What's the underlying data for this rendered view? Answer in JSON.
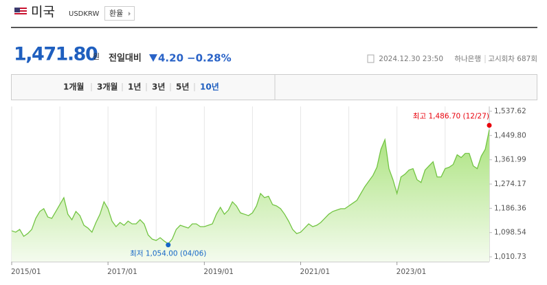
{
  "header": {
    "country": "미국",
    "code": "USDKRW",
    "button": "환율"
  },
  "quote": {
    "price": "1,471.80",
    "unit": "원",
    "change_label": "전일대비",
    "change": "4.20",
    "change_rate": "−0.28%",
    "datetime": "2024.12.30 23:50",
    "bank": "하나은행",
    "round": "고시회차 687회"
  },
  "tabs": [
    "1개월",
    "3개월",
    "1년",
    "3년",
    "5년",
    "10년"
  ],
  "active_tab": 5,
  "chart_data": {
    "type": "area",
    "categories": [
      "2015/01",
      null,
      null,
      null,
      null,
      null,
      null,
      null,
      null,
      null,
      null,
      null,
      null,
      null,
      null,
      null,
      null,
      null,
      null,
      null,
      null,
      null,
      null,
      null,
      "2017/01",
      null,
      null,
      null,
      null,
      null,
      null,
      null,
      null,
      null,
      null,
      null,
      null,
      null,
      null,
      null,
      null,
      null,
      null,
      null,
      null,
      null,
      null,
      null,
      "2019/01",
      null,
      null,
      null,
      null,
      null,
      null,
      null,
      null,
      null,
      null,
      null,
      null,
      null,
      null,
      null,
      null,
      null,
      null,
      null,
      null,
      null,
      null,
      null,
      "2021/01",
      null,
      null,
      null,
      null,
      null,
      null,
      null,
      null,
      null,
      null,
      null,
      null,
      null,
      null,
      null,
      null,
      null,
      null,
      null,
      null,
      null,
      null,
      null,
      "2023/01",
      null,
      null,
      null,
      null,
      null,
      null,
      null,
      null,
      null,
      null,
      null,
      null,
      null,
      null,
      null,
      null,
      null,
      null,
      null,
      null,
      null,
      null,
      null
    ],
    "values": [
      1105,
      1100,
      1110,
      1085,
      1095,
      1110,
      1150,
      1175,
      1185,
      1155,
      1150,
      1175,
      1200,
      1225,
      1165,
      1145,
      1175,
      1160,
      1125,
      1115,
      1100,
      1135,
      1165,
      1210,
      1185,
      1140,
      1120,
      1135,
      1125,
      1140,
      1130,
      1130,
      1145,
      1130,
      1090,
      1075,
      1070,
      1080,
      1068,
      1058,
      1075,
      1110,
      1125,
      1120,
      1115,
      1130,
      1130,
      1120,
      1120,
      1125,
      1130,
      1165,
      1190,
      1165,
      1180,
      1210,
      1195,
      1170,
      1165,
      1160,
      1170,
      1195,
      1240,
      1225,
      1230,
      1200,
      1195,
      1185,
      1165,
      1140,
      1110,
      1095,
      1100,
      1115,
      1130,
      1120,
      1125,
      1135,
      1150,
      1165,
      1175,
      1180,
      1185,
      1185,
      1195,
      1205,
      1215,
      1240,
      1265,
      1285,
      1305,
      1335,
      1400,
      1435,
      1330,
      1290,
      1240,
      1300,
      1310,
      1325,
      1330,
      1290,
      1280,
      1325,
      1340,
      1355,
      1300,
      1300,
      1330,
      1335,
      1345,
      1380,
      1370,
      1385,
      1385,
      1340,
      1330,
      1375,
      1400,
      1470
    ],
    "color": "#72c442",
    "ylim": [
      1010.73,
      1537.62
    ],
    "yticks": [
      {
        "value": 1537.62,
        "label": "1,537.62"
      },
      {
        "value": 1449.8,
        "label": "1,449.80"
      },
      {
        "value": 1361.99,
        "label": "1,361.99"
      },
      {
        "value": 1274.17,
        "label": "1,274.17"
      },
      {
        "value": 1186.36,
        "label": "1,186.36"
      },
      {
        "value": 1098.54,
        "label": "1,098.54"
      },
      {
        "value": 1010.73,
        "label": "1,010.73"
      }
    ],
    "annotations": [
      {
        "text": "최고 1,486.70 (12/27)",
        "value": 1486.7,
        "color": "#e8000b"
      },
      {
        "text": "최저 1,054.00 (04/06)",
        "value": 1054.0,
        "color": "#1666c8"
      }
    ]
  }
}
